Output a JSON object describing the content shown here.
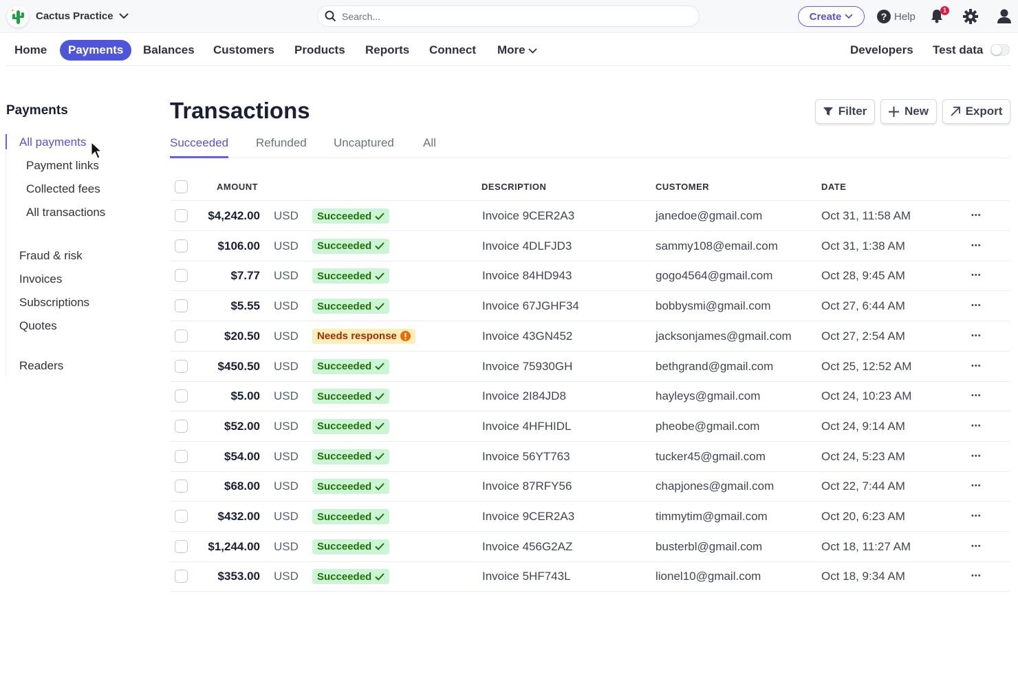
{
  "topbar": {
    "account": "Cactus Practice",
    "search_placeholder": "Search...",
    "create": "Create",
    "help": "Help",
    "notification_count": "1"
  },
  "nav": {
    "items": [
      "Home",
      "Payments",
      "Balances",
      "Customers",
      "Products",
      "Reports",
      "Connect",
      "More"
    ],
    "active": "Payments",
    "developers": "Developers",
    "test_data": "Test data",
    "test_data_on": false
  },
  "sidebar": {
    "title": "Payments",
    "items": [
      "All payments",
      "Payment links",
      "Collected fees",
      "All transactions",
      "Fraud & risk",
      "Invoices",
      "Subscriptions",
      "Quotes",
      "Readers"
    ],
    "active": "All payments"
  },
  "main": {
    "title": "Transactions",
    "filter": "Filter",
    "new": "New",
    "export": "Export",
    "tabs": [
      "Succeeded",
      "Refunded",
      "Uncaptured",
      "All"
    ],
    "active_tab": "Succeeded",
    "columns": {
      "amount": "AMOUNT",
      "description": "DESCRIPTION",
      "customer": "CUSTOMER",
      "date": "DATE"
    },
    "rows": [
      {
        "amount": "$4,242.00",
        "currency": "USD",
        "status": "Succeeded",
        "description": "Invoice 9CER2A3",
        "customer": "janedoe@gmail.com",
        "date": "Oct 31, 11:58 AM"
      },
      {
        "amount": "$106.00",
        "currency": "USD",
        "status": "Succeeded",
        "description": "Invoice 4DLFJD3",
        "customer": "sammy108@email.com",
        "date": "Oct 31, 1:38 AM"
      },
      {
        "amount": "$7.77",
        "currency": "USD",
        "status": "Succeeded",
        "description": "Invoice 84HD943",
        "customer": "gogo4564@gmail.com",
        "date": "Oct 28, 9:45 AM"
      },
      {
        "amount": "$5.55",
        "currency": "USD",
        "status": "Succeeded",
        "description": "Invoice 67JGHF34",
        "customer": "bobbysmi@gmail.com",
        "date": "Oct 27, 6:44 AM"
      },
      {
        "amount": "$20.50",
        "currency": "USD",
        "status": "Needs response",
        "description": "Invoice 43GN452",
        "customer": "jacksonjames@gmail.com",
        "date": "Oct 27, 2:54 AM"
      },
      {
        "amount": "$450.50",
        "currency": "USD",
        "status": "Succeeded",
        "description": "Invoice 75930GH",
        "customer": "bethgrand@gmail.com",
        "date": "Oct 25, 12:52 AM"
      },
      {
        "amount": "$5.00",
        "currency": "USD",
        "status": "Succeeded",
        "description": "Invoice 2I84JD8",
        "customer": "hayleys@gmail.com",
        "date": "Oct 24, 10:23 AM"
      },
      {
        "amount": "$52.00",
        "currency": "USD",
        "status": "Succeeded",
        "description": "Invoice 4HFHIDL",
        "customer": "pheobe@gmail.com",
        "date": "Oct 24, 9:14 AM"
      },
      {
        "amount": "$54.00",
        "currency": "USD",
        "status": "Succeeded",
        "description": "Invoice 56YT763",
        "customer": "tucker45@gmail.com",
        "date": "Oct 24, 5:23 AM"
      },
      {
        "amount": "$68.00",
        "currency": "USD",
        "status": "Succeeded",
        "description": "Invoice 87RFY56",
        "customer": "chapjones@gmail.com",
        "date": "Oct 22, 7:44 AM"
      },
      {
        "amount": "$432.00",
        "currency": "USD",
        "status": "Succeeded",
        "description": "Invoice 9CER2A3",
        "customer": "timmytim@gmail.com",
        "date": "Oct 20, 6:23 AM"
      },
      {
        "amount": "$1,244.00",
        "currency": "USD",
        "status": "Succeeded",
        "description": "Invoice 456G2AZ",
        "customer": "busterbl@gmail.com",
        "date": "Oct 18, 11:27 AM"
      },
      {
        "amount": "$353.00",
        "currency": "USD",
        "status": "Succeeded",
        "description": "Invoice 5HF743L",
        "customer": "lionel10@gmail.com",
        "date": "Oct 18, 9:34 AM"
      }
    ]
  },
  "colors": {
    "accent": "#635bff",
    "nav_active": "#4f55d8",
    "success_bg": "#cbf5d5",
    "success_text": "#217005",
    "warning_bg": "#fcedb9",
    "warning_text": "#a82c00",
    "notification": "#df1b41"
  }
}
